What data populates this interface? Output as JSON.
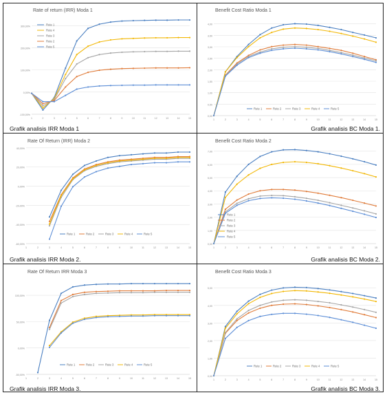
{
  "captions": [
    "Grafik analisis IRR Moda 1",
    "Grafik analisis BC Moda 1.",
    "Grafik analisis IRR Moda 2.",
    "Grafik analisis BC Moda 2.",
    "Grafik analisis IRR Moda 3.",
    "Grafik analisis BC Moda 3."
  ],
  "colors": {
    "rute1": "#4a7fc1",
    "rute2": "#e07b39",
    "rute3": "#a5a5a5",
    "rute4": "#f2b705",
    "rute5": "#5b8dd6"
  },
  "chart_data": [
    {
      "type": "line",
      "title": "Rate of return (IRR) Moda 1",
      "x": [
        1,
        2,
        3,
        4,
        5,
        6,
        7,
        8,
        9,
        10,
        11,
        12,
        13,
        14,
        15
      ],
      "ylim": [
        -100,
        360
      ],
      "yticks": [
        "-100,00%",
        "0,00%",
        "100,00%",
        "200,00%",
        "300,00%"
      ],
      "xticks": [
        "1",
        "2",
        "3",
        "4",
        "5",
        "6",
        "7",
        "8",
        "9",
        "10",
        "11",
        "12",
        "13",
        "14",
        "15"
      ],
      "legend": "top-left-vertical",
      "series": [
        {
          "name": "Rute 1",
          "values": [
            0,
            -80,
            -20,
            120,
            250,
            310,
            330,
            340,
            345,
            347,
            348,
            349,
            349,
            350,
            350
          ]
        },
        {
          "name": "Rute 4",
          "values": [
            0,
            -70,
            -25,
            90,
            185,
            225,
            245,
            255,
            260,
            262,
            264,
            265,
            265,
            266,
            266
          ]
        },
        {
          "name": "Rute 3",
          "values": [
            0,
            -60,
            -30,
            70,
            140,
            170,
            185,
            192,
            196,
            198,
            199,
            200,
            200,
            201,
            201
          ]
        },
        {
          "name": "Rute 2",
          "values": [
            0,
            -50,
            -35,
            30,
            80,
            100,
            110,
            115,
            118,
            119,
            120,
            121,
            121,
            121,
            122
          ]
        },
        {
          "name": "Rute 5",
          "values": [
            0,
            -40,
            -40,
            -10,
            20,
            30,
            35,
            37,
            38,
            39,
            39,
            40,
            40,
            40,
            40
          ]
        }
      ]
    },
    {
      "type": "line",
      "title": "Benefit Cost Ratio Moda 1",
      "x": [
        1,
        2,
        3,
        4,
        5,
        6,
        7,
        8,
        9,
        10,
        11,
        12,
        13,
        14,
        15
      ],
      "ylim": [
        0,
        4.4
      ],
      "yticks": [
        "0,00",
        "0,50",
        "1,00",
        "1,50",
        "2,00",
        "2,50",
        "3,00",
        "3,50",
        "4,00"
      ],
      "xticks": [
        "1",
        "2",
        "3",
        "4",
        "5",
        "6",
        "7",
        "8",
        "9",
        "10",
        "11",
        "12",
        "13",
        "14",
        "15"
      ],
      "legend": "bottom",
      "series": [
        {
          "name": "Rute 1",
          "values": [
            0,
            2.0,
            2.7,
            3.25,
            3.7,
            4.0,
            4.15,
            4.2,
            4.18,
            4.12,
            4.03,
            3.93,
            3.8,
            3.68,
            3.55
          ]
        },
        {
          "name": "Rute 2",
          "values": [
            0,
            1.85,
            2.4,
            2.75,
            3.0,
            3.15,
            3.22,
            3.25,
            3.22,
            3.15,
            3.07,
            2.98,
            2.85,
            2.7,
            2.55
          ]
        },
        {
          "name": "Rute 3",
          "values": [
            0,
            1.82,
            2.35,
            2.7,
            2.9,
            3.05,
            3.12,
            3.15,
            3.12,
            3.07,
            2.98,
            2.88,
            2.76,
            2.63,
            2.5
          ]
        },
        {
          "name": "Rute 4",
          "values": [
            0,
            2.0,
            2.65,
            3.15,
            3.55,
            3.8,
            3.95,
            4.0,
            3.98,
            3.93,
            3.85,
            3.75,
            3.63,
            3.5,
            3.35
          ]
        },
        {
          "name": "Rute 5",
          "values": [
            0,
            1.8,
            2.3,
            2.65,
            2.85,
            2.98,
            3.05,
            3.08,
            3.05,
            3.0,
            2.92,
            2.82,
            2.7,
            2.57,
            2.43
          ]
        }
      ]
    },
    {
      "type": "line",
      "title": "Rate Of Return (IRR) Moda 2",
      "x": [
        1,
        2,
        3,
        4,
        5,
        6,
        7,
        8,
        9,
        10,
        11,
        12,
        13,
        14,
        15
      ],
      "ylim": [
        -60,
        50
      ],
      "yticks": [
        "-60,00%",
        "-40,00%",
        "-20,00%",
        "0,00%",
        "20,00%",
        "40,00%"
      ],
      "xticks": [
        "1",
        "2",
        "3",
        "4",
        "5",
        "6",
        "7",
        "8",
        "9",
        "10",
        "11",
        "12",
        "13",
        "14",
        "15"
      ],
      "legend": "bottom-inside",
      "series": [
        {
          "name": "Rute 1",
          "values": [
            null,
            null,
            -30,
            0,
            18,
            28,
            33,
            37,
            39,
            40,
            41,
            42,
            42,
            43,
            43
          ]
        },
        {
          "name": "Rute 2",
          "values": [
            null,
            null,
            -35,
            -5,
            14,
            24,
            29,
            32,
            34,
            35,
            36,
            37,
            37,
            38,
            38
          ]
        },
        {
          "name": "Rute 3",
          "values": [
            null,
            null,
            -40,
            -8,
            12,
            22,
            27,
            30,
            32,
            33,
            34,
            35,
            35,
            36,
            36
          ]
        },
        {
          "name": "Rute 4",
          "values": [
            null,
            null,
            -38,
            -6,
            13,
            23,
            28,
            31,
            33,
            34,
            35,
            36,
            36,
            37,
            37
          ]
        },
        {
          "name": "Rute 5",
          "values": [
            null,
            null,
            -55,
            -18,
            4,
            15,
            21,
            25,
            27,
            29,
            30,
            31,
            31,
            32,
            32
          ]
        }
      ]
    },
    {
      "type": "line",
      "title": "Benefit Cost Ratio Moda 2",
      "x": [
        1,
        2,
        3,
        4,
        5,
        6,
        7,
        8,
        9,
        10,
        11,
        12,
        13,
        14,
        15
      ],
      "ylim": [
        0,
        7.4
      ],
      "yticks": [
        "0,00",
        "1,00",
        "2,00",
        "3,00",
        "4,00",
        "5,00",
        "6,00",
        "7,00"
      ],
      "xticks": [
        "1",
        "2",
        "3",
        "4",
        "5",
        "6",
        "7",
        "8",
        "9",
        "10",
        "11",
        "12",
        "13",
        "14",
        "15"
      ],
      "legend": "left-vertical",
      "series": [
        {
          "name": "Rute 1",
          "values": [
            0,
            3.9,
            5.1,
            6.0,
            6.6,
            6.95,
            7.1,
            7.12,
            7.05,
            6.95,
            6.8,
            6.62,
            6.42,
            6.2,
            5.95
          ]
        },
        {
          "name": "Rute 2",
          "values": [
            0,
            2.6,
            3.3,
            3.75,
            4.0,
            4.1,
            4.1,
            4.05,
            3.95,
            3.82,
            3.66,
            3.48,
            3.28,
            3.07,
            2.85
          ]
        },
        {
          "name": "Rute 3",
          "values": [
            0,
            2.4,
            3.05,
            3.4,
            3.6,
            3.65,
            3.63,
            3.55,
            3.43,
            3.28,
            3.1,
            2.9,
            2.7,
            2.48,
            2.25
          ]
        },
        {
          "name": "Rute 4",
          "values": [
            0,
            3.5,
            4.5,
            5.2,
            5.7,
            6.0,
            6.15,
            6.2,
            6.15,
            6.05,
            5.9,
            5.72,
            5.52,
            5.3,
            5.05
          ]
        },
        {
          "name": "Rute 5",
          "values": [
            0,
            2.3,
            2.9,
            3.25,
            3.42,
            3.47,
            3.44,
            3.36,
            3.23,
            3.07,
            2.88,
            2.67,
            2.45,
            2.22,
            1.98
          ]
        }
      ]
    },
    {
      "type": "line",
      "title": "Rate Of Return  IRR Moda 3",
      "x": [
        1,
        2,
        3,
        4,
        5,
        6,
        7,
        8,
        9,
        10,
        11,
        12,
        13,
        14,
        15
      ],
      "ylim": [
        -100,
        160
      ],
      "yticks": [
        "-50,00%",
        "0,00%",
        "50,00%",
        "100,00%"
      ],
      "xticks": [
        "1",
        "2",
        "3",
        "4",
        "5",
        "6",
        "7",
        "8",
        "9",
        "10",
        "11",
        "12",
        "13",
        "14",
        "15"
      ],
      "legend": "bottom-inside",
      "series": [
        {
          "name": "Rute 1",
          "values": [
            null,
            -95,
            50,
            125,
            143,
            148,
            150,
            151,
            151,
            152,
            152,
            152,
            152,
            152,
            152
          ]
        },
        {
          "name": "Rute 2",
          "values": [
            null,
            null,
            30,
            105,
            122,
            128,
            130,
            131,
            132,
            132,
            132,
            132,
            133,
            133,
            133
          ]
        },
        {
          "name": "Rute 3",
          "values": [
            null,
            null,
            25,
            98,
            116,
            122,
            125,
            126,
            127,
            127,
            127,
            128,
            128,
            128,
            128
          ]
        },
        {
          "name": "Rute 4",
          "values": [
            null,
            null,
            -20,
            18,
            45,
            56,
            61,
            63,
            64,
            65,
            65,
            66,
            66,
            66,
            66
          ]
        },
        {
          "name": "Rute 5",
          "values": [
            null,
            null,
            -25,
            15,
            42,
            53,
            58,
            60,
            61,
            62,
            62,
            63,
            63,
            63,
            63
          ]
        }
      ]
    },
    {
      "type": "line",
      "title": "Benefit Cost Ratio Moda 3",
      "x": [
        1,
        2,
        3,
        4,
        5,
        6,
        7,
        8,
        9,
        10,
        11,
        12,
        13,
        14,
        15
      ],
      "ylim": [
        0,
        5.6
      ],
      "yticks": [
        "0,00",
        "1,00",
        "2,00",
        "3,00",
        "4,00",
        "5,00"
      ],
      "xticks": [
        "1",
        "2",
        "3",
        "4",
        "5",
        "6",
        "7",
        "8",
        "9",
        "10",
        "11",
        "12",
        "13",
        "14",
        "15"
      ],
      "legend": "bottom-inside",
      "series": [
        {
          "name": "Rute 1",
          "values": [
            0,
            2.9,
            3.8,
            4.4,
            4.8,
            5.05,
            5.18,
            5.22,
            5.2,
            5.14,
            5.06,
            4.96,
            4.85,
            4.72,
            4.58
          ]
        },
        {
          "name": "Rute 2",
          "values": [
            0,
            2.5,
            3.25,
            3.7,
            3.98,
            4.15,
            4.22,
            4.24,
            4.2,
            4.12,
            4.02,
            3.9,
            3.76,
            3.6,
            3.43
          ]
        },
        {
          "name": "Rute 3",
          "values": [
            0,
            2.55,
            3.35,
            3.85,
            4.15,
            4.35,
            4.45,
            4.48,
            4.45,
            4.38,
            4.3,
            4.18,
            4.05,
            3.9,
            3.74
          ]
        },
        {
          "name": "Rute 4",
          "values": [
            0,
            2.8,
            3.65,
            4.25,
            4.62,
            4.85,
            4.97,
            5.02,
            5.0,
            4.94,
            4.86,
            4.76,
            4.65,
            4.52,
            4.38
          ]
        },
        {
          "name": "Rute 5",
          "values": [
            0,
            2.2,
            2.85,
            3.25,
            3.5,
            3.62,
            3.68,
            3.68,
            3.63,
            3.55,
            3.44,
            3.3,
            3.15,
            2.98,
            2.8
          ]
        }
      ]
    }
  ]
}
